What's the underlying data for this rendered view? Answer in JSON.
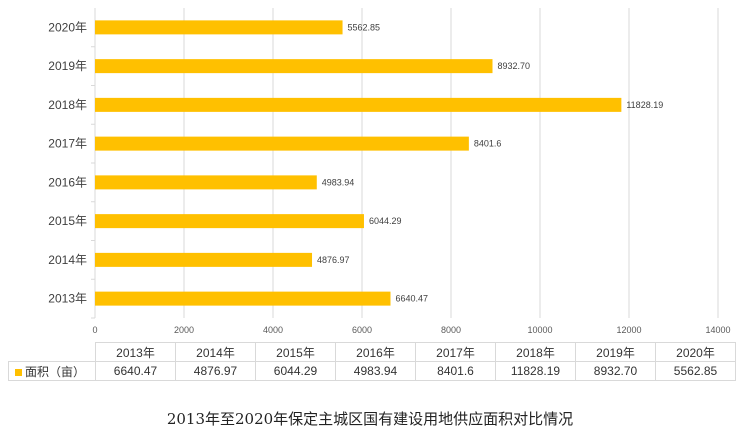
{
  "chart_data": {
    "type": "bar",
    "orientation": "horizontal",
    "title": "2013年至2020年保定主城区国有建设用地供应面积对比情况",
    "categories": [
      "2013年",
      "2014年",
      "2015年",
      "2016年",
      "2017年",
      "2018年",
      "2019年",
      "2020年"
    ],
    "series": [
      {
        "name": "面积（亩）",
        "values": [
          6640.47,
          4876.97,
          6044.29,
          4983.94,
          8401.6,
          11828.19,
          8932.7,
          5562.85
        ],
        "labels": [
          "6640.47",
          "4876.97",
          "6044.29",
          "4983.94",
          "8401.6",
          "11828.19",
          "8932.70",
          "5562.85"
        ],
        "color": "#ffc000"
      }
    ],
    "xlim": [
      0,
      14000
    ],
    "xticks": [
      "0",
      "2000",
      "4000",
      "6000",
      "8000",
      "10000",
      "12000",
      "14000"
    ],
    "grid": true,
    "legend": "data-table"
  }
}
